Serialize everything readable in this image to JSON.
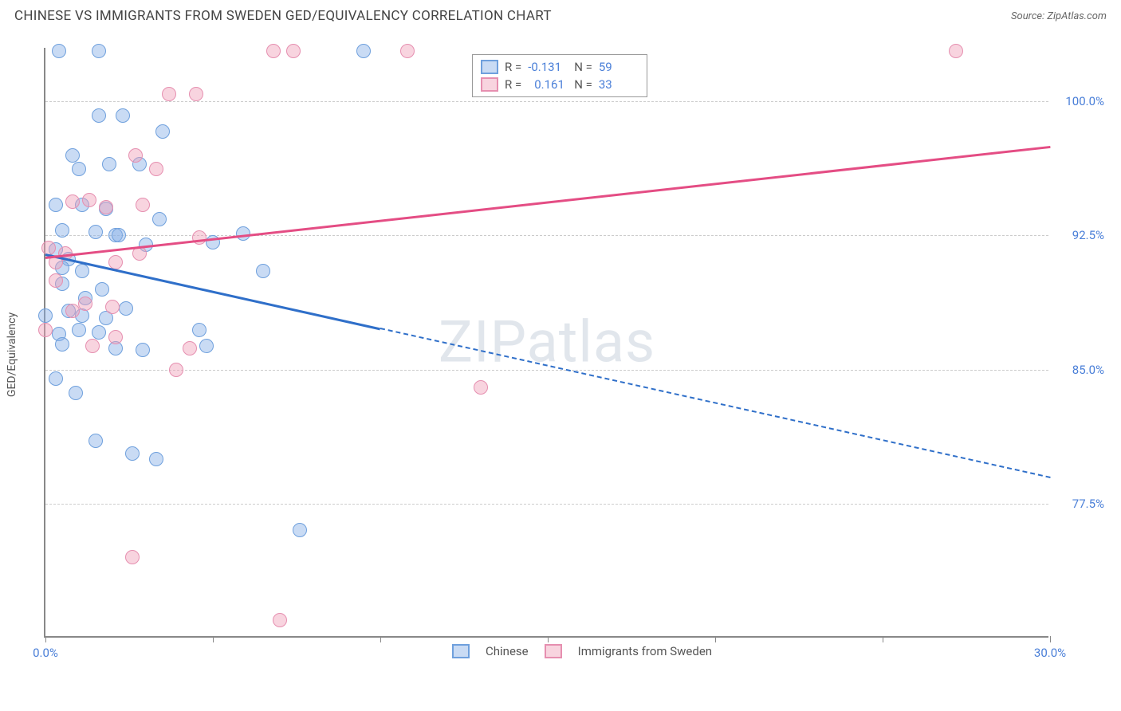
{
  "title": "CHINESE VS IMMIGRANTS FROM SWEDEN GED/EQUIVALENCY CORRELATION CHART",
  "source": "Source: ZipAtlas.com",
  "watermark": "ZIPatlas",
  "y_axis_label": "GED/Equivalency",
  "chart": {
    "type": "scatter",
    "xlim": [
      0,
      30
    ],
    "ylim": [
      70,
      103
    ],
    "x_ticks": [
      0,
      5,
      10,
      15,
      20,
      25,
      30
    ],
    "x_tick_labels": {
      "0": "0.0%",
      "30": "30.0%"
    },
    "y_ticks": [
      77.5,
      85.0,
      92.5,
      100.0
    ],
    "y_tick_labels": [
      "77.5%",
      "85.0%",
      "92.5%",
      "100.0%"
    ],
    "grid_color": "#cccccc",
    "background_color": "#ffffff",
    "axis_color": "#888888",
    "tick_label_color": "#4a7fd8",
    "point_radius": 9,
    "series": [
      {
        "name": "Chinese",
        "color_fill": "rgba(135,175,230,0.45)",
        "color_stroke": "#6fa0dd",
        "R": "-0.131",
        "N": "59",
        "trend": {
          "x1": 0,
          "y1": 91.5,
          "x2": 30,
          "y2": 79.0,
          "solid_until_x": 10,
          "color": "#2f6fc9"
        },
        "points": [
          [
            0.4,
            102.8
          ],
          [
            1.6,
            102.8
          ],
          [
            9.5,
            102.8
          ],
          [
            1.6,
            99.2
          ],
          [
            2.3,
            99.2
          ],
          [
            3.5,
            98.3
          ],
          [
            0.8,
            97.0
          ],
          [
            1.0,
            96.2
          ],
          [
            1.9,
            96.5
          ],
          [
            2.8,
            96.5
          ],
          [
            0.3,
            94.2
          ],
          [
            1.1,
            94.2
          ],
          [
            1.8,
            94.0
          ],
          [
            3.4,
            93.4
          ],
          [
            0.5,
            92.8
          ],
          [
            1.5,
            92.7
          ],
          [
            2.1,
            92.5
          ],
          [
            2.2,
            92.5
          ],
          [
            5.0,
            92.1
          ],
          [
            5.9,
            92.6
          ],
          [
            3.0,
            92.0
          ],
          [
            0.3,
            91.7
          ],
          [
            0.7,
            91.2
          ],
          [
            0.5,
            90.7
          ],
          [
            1.1,
            90.5
          ],
          [
            0.5,
            89.8
          ],
          [
            1.7,
            89.5
          ],
          [
            1.2,
            89.0
          ],
          [
            6.5,
            90.5
          ],
          [
            0.0,
            88.0
          ],
          [
            0.7,
            88.3
          ],
          [
            1.1,
            88.0
          ],
          [
            1.8,
            87.9
          ],
          [
            2.4,
            88.4
          ],
          [
            0.4,
            87.0
          ],
          [
            1.0,
            87.2
          ],
          [
            1.6,
            87.1
          ],
          [
            4.6,
            87.2
          ],
          [
            0.5,
            86.4
          ],
          [
            2.1,
            86.2
          ],
          [
            2.9,
            86.1
          ],
          [
            4.8,
            86.3
          ],
          [
            0.3,
            84.5
          ],
          [
            0.9,
            83.7
          ],
          [
            1.5,
            81.0
          ],
          [
            2.6,
            80.3
          ],
          [
            3.3,
            80.0
          ],
          [
            7.6,
            76.0
          ]
        ]
      },
      {
        "name": "Immigrants from Sweden",
        "color_fill": "rgba(240,160,185,0.45)",
        "color_stroke": "#e68fb0",
        "R": "0.161",
        "N": "33",
        "trend": {
          "x1": 0,
          "y1": 91.3,
          "x2": 30,
          "y2": 97.5,
          "solid_until_x": 30,
          "color": "#e44d84"
        },
        "points": [
          [
            6.8,
            102.8
          ],
          [
            7.4,
            102.8
          ],
          [
            10.8,
            102.8
          ],
          [
            27.2,
            102.8
          ],
          [
            3.7,
            100.4
          ],
          [
            4.5,
            100.4
          ],
          [
            2.7,
            97.0
          ],
          [
            3.3,
            96.2
          ],
          [
            0.8,
            94.4
          ],
          [
            1.3,
            94.5
          ],
          [
            1.8,
            94.1
          ],
          [
            2.9,
            94.2
          ],
          [
            4.6,
            92.4
          ],
          [
            0.1,
            91.8
          ],
          [
            0.6,
            91.5
          ],
          [
            0.3,
            91.0
          ],
          [
            2.8,
            91.5
          ],
          [
            2.1,
            91.0
          ],
          [
            0.3,
            90.0
          ],
          [
            1.2,
            88.7
          ],
          [
            2.0,
            88.5
          ],
          [
            0.8,
            88.3
          ],
          [
            0.0,
            87.2
          ],
          [
            1.4,
            86.3
          ],
          [
            2.1,
            86.8
          ],
          [
            4.3,
            86.2
          ],
          [
            3.9,
            85.0
          ],
          [
            13.0,
            84.0
          ],
          [
            2.6,
            74.5
          ],
          [
            7.0,
            71.0
          ]
        ]
      }
    ]
  },
  "legend_top": [
    {
      "swatch_fill": "rgba(135,175,230,0.45)",
      "swatch_stroke": "#6fa0dd",
      "R": "-0.131",
      "N": "59"
    },
    {
      "swatch_fill": "rgba(240,160,185,0.45)",
      "swatch_stroke": "#e68fb0",
      "R": "0.161",
      "N": "33"
    }
  ],
  "legend_bottom": [
    {
      "swatch_fill": "rgba(135,175,230,0.45)",
      "swatch_stroke": "#6fa0dd",
      "label": "Chinese"
    },
    {
      "swatch_fill": "rgba(240,160,185,0.45)",
      "swatch_stroke": "#e68fb0",
      "label": "Immigrants from Sweden"
    }
  ]
}
